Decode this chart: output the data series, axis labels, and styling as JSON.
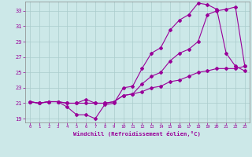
{
  "xlabel": "Windchill (Refroidissement éolien,°C)",
  "bg_color": "#cce8e8",
  "line_color": "#990099",
  "grid_color": "#aacccc",
  "xlim": [
    -0.5,
    23.5
  ],
  "ylim": [
    18.5,
    34.2
  ],
  "xticks": [
    0,
    1,
    2,
    3,
    4,
    5,
    6,
    7,
    8,
    9,
    10,
    11,
    12,
    13,
    14,
    15,
    16,
    17,
    18,
    19,
    20,
    21,
    22,
    23
  ],
  "yticks": [
    19,
    21,
    23,
    25,
    27,
    29,
    31,
    33
  ],
  "curve1_x": [
    0,
    1,
    2,
    3,
    4,
    5,
    6,
    7,
    8,
    9,
    10,
    11,
    12,
    13,
    14,
    15,
    16,
    17,
    18,
    19,
    20,
    21,
    22,
    23
  ],
  "curve1_y": [
    21.2,
    21.0,
    21.2,
    21.2,
    20.5,
    19.5,
    19.5,
    19.0,
    20.8,
    21.0,
    23.0,
    23.2,
    25.5,
    27.5,
    28.2,
    30.5,
    31.8,
    32.5,
    34.0,
    33.8,
    33.2,
    27.5,
    25.8,
    25.2
  ],
  "curve2_x": [
    0,
    1,
    2,
    3,
    4,
    5,
    6,
    7,
    8,
    9,
    10,
    11,
    12,
    13,
    14,
    15,
    16,
    17,
    18,
    19,
    20,
    21,
    22,
    23
  ],
  "curve2_y": [
    21.2,
    21.0,
    21.2,
    21.2,
    21.0,
    21.0,
    21.0,
    21.0,
    21.0,
    21.2,
    22.0,
    22.2,
    23.5,
    24.5,
    25.0,
    26.5,
    27.5,
    28.0,
    29.0,
    32.5,
    33.0,
    33.2,
    33.5,
    25.8
  ],
  "curve3_x": [
    0,
    1,
    2,
    3,
    4,
    5,
    6,
    7,
    8,
    9,
    10,
    11,
    12,
    13,
    14,
    15,
    16,
    17,
    18,
    19,
    20,
    21,
    22,
    23
  ],
  "curve3_y": [
    21.2,
    21.0,
    21.2,
    21.2,
    21.0,
    21.0,
    21.5,
    21.0,
    21.0,
    21.2,
    22.0,
    22.2,
    22.5,
    23.0,
    23.2,
    23.8,
    24.0,
    24.5,
    25.0,
    25.2,
    25.5,
    25.5,
    25.5,
    25.8
  ]
}
